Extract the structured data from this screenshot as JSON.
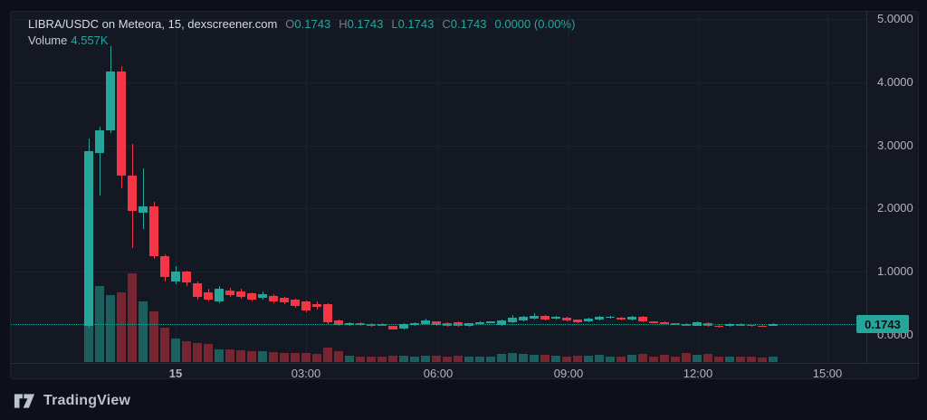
{
  "header": {
    "title": "LIBRA/USDC on Meteora, 15, dexscreener.com",
    "o_label": "O",
    "o_value": "0.1743",
    "h_label": "H",
    "h_value": "0.1743",
    "l_label": "L",
    "l_value": "0.1743",
    "c_label": "C",
    "c_value": "0.1743",
    "change_value": "0.0000 (0.00%)",
    "volume_label": "Volume",
    "volume_value": "4.557K"
  },
  "price_axis": {
    "ticks": [
      {
        "label": "5.0000",
        "value": 5
      },
      {
        "label": "4.0000",
        "value": 4
      },
      {
        "label": "3.0000",
        "value": 3
      },
      {
        "label": "2.0000",
        "value": 2
      },
      {
        "label": "1.0000",
        "value": 1
      },
      {
        "label": "0.0000",
        "value": 0
      }
    ],
    "last_price_badge": "0.1743"
  },
  "time_axis": {
    "ticks": [
      {
        "label": "15",
        "major": true
      },
      {
        "label": "03:00",
        "major": false
      },
      {
        "label": "06:00",
        "major": false
      },
      {
        "label": "09:00",
        "major": false
      },
      {
        "label": "12:00",
        "major": false
      },
      {
        "label": "15:00",
        "major": false
      }
    ]
  },
  "footer": {
    "brand": "TradingView"
  },
  "colors": {
    "background_outer": "#0d1018",
    "background_chart": "#141823",
    "up": "#26a69a",
    "down": "#f23645",
    "volume_up": "rgba(38,166,154,0.5)",
    "volume_down": "rgba(242,54,69,0.45)",
    "grid": "#1c2130",
    "axis_text": "#b2b5be",
    "title_text": "#d6dae2",
    "dim_text": "#787b86",
    "badge_bg": "#26a69a"
  },
  "chart_data": {
    "type": "candlestick",
    "title": "LIBRA/USDC on Meteora, 15, dexscreener.com",
    "symbol": "LIBRA/USDC",
    "exchange": "Meteora",
    "source": "dexscreener.com",
    "interval_minutes": 15,
    "ylim": [
      0,
      5.1
    ],
    "y_ticks": [
      0,
      1,
      2,
      3,
      4,
      5
    ],
    "x_tick_labels": [
      "15",
      "03:00",
      "06:00",
      "09:00",
      "12:00",
      "15:00"
    ],
    "grid": true,
    "last_price": 0.1743,
    "last_change": "0.0000 (0.00%)",
    "last_volume": "4.557K",
    "candle_format": [
      "open",
      "high",
      "low",
      "close",
      "volume_rel"
    ],
    "candles": [
      [
        0.14,
        3.11,
        0.12,
        2.91,
        88
      ],
      [
        2.88,
        3.3,
        2.21,
        3.24,
        84
      ],
      [
        3.24,
        4.57,
        3.2,
        4.17,
        74
      ],
      [
        4.17,
        4.25,
        2.32,
        2.52,
        77
      ],
      [
        2.52,
        3.02,
        1.38,
        1.96,
        98
      ],
      [
        1.93,
        2.64,
        1.68,
        2.03,
        67
      ],
      [
        2.03,
        2.11,
        1.2,
        1.25,
        56
      ],
      [
        1.25,
        1.27,
        0.85,
        0.92,
        38
      ],
      [
        0.85,
        1.09,
        0.8,
        1.0,
        26
      ],
      [
        1.0,
        1.02,
        0.77,
        0.83,
        23
      ],
      [
        0.82,
        0.84,
        0.56,
        0.6,
        21
      ],
      [
        0.67,
        0.73,
        0.53,
        0.56,
        20
      ],
      [
        0.53,
        0.77,
        0.5,
        0.73,
        14
      ],
      [
        0.7,
        0.74,
        0.6,
        0.63,
        14
      ],
      [
        0.69,
        0.73,
        0.57,
        0.6,
        13
      ],
      [
        0.66,
        0.68,
        0.53,
        0.56,
        12
      ],
      [
        0.59,
        0.69,
        0.56,
        0.64,
        12
      ],
      [
        0.62,
        0.64,
        0.5,
        0.53,
        11
      ],
      [
        0.59,
        0.6,
        0.49,
        0.52,
        10
      ],
      [
        0.56,
        0.57,
        0.43,
        0.46,
        10
      ],
      [
        0.53,
        0.54,
        0.36,
        0.39,
        10
      ],
      [
        0.49,
        0.53,
        0.4,
        0.44,
        9
      ],
      [
        0.49,
        0.5,
        0.17,
        0.2,
        16
      ],
      [
        0.23,
        0.24,
        0.15,
        0.16,
        12
      ],
      [
        0.16,
        0.2,
        0.15,
        0.19,
        7
      ],
      [
        0.19,
        0.2,
        0.15,
        0.16,
        6
      ],
      [
        0.17,
        0.18,
        0.13,
        0.14,
        6
      ],
      [
        0.17,
        0.18,
        0.14,
        0.15,
        6
      ],
      [
        0.14,
        0.15,
        0.08,
        0.09,
        7
      ],
      [
        0.1,
        0.18,
        0.09,
        0.17,
        7
      ],
      [
        0.16,
        0.2,
        0.15,
        0.19,
        6
      ],
      [
        0.17,
        0.26,
        0.16,
        0.23,
        7
      ],
      [
        0.21,
        0.22,
        0.15,
        0.16,
        7
      ],
      [
        0.19,
        0.2,
        0.13,
        0.14,
        6
      ],
      [
        0.2,
        0.21,
        0.13,
        0.14,
        7
      ],
      [
        0.14,
        0.19,
        0.13,
        0.19,
        6
      ],
      [
        0.17,
        0.21,
        0.16,
        0.2,
        6
      ],
      [
        0.19,
        0.22,
        0.18,
        0.21,
        6
      ],
      [
        0.16,
        0.24,
        0.15,
        0.23,
        9
      ],
      [
        0.2,
        0.32,
        0.19,
        0.27,
        10
      ],
      [
        0.23,
        0.3,
        0.22,
        0.29,
        9
      ],
      [
        0.26,
        0.34,
        0.25,
        0.3,
        8
      ],
      [
        0.3,
        0.31,
        0.23,
        0.24,
        8
      ],
      [
        0.26,
        0.3,
        0.25,
        0.29,
        7
      ],
      [
        0.27,
        0.28,
        0.22,
        0.23,
        6
      ],
      [
        0.24,
        0.25,
        0.19,
        0.2,
        7
      ],
      [
        0.21,
        0.27,
        0.2,
        0.26,
        7
      ],
      [
        0.24,
        0.3,
        0.23,
        0.29,
        8
      ],
      [
        0.27,
        0.3,
        0.26,
        0.29,
        6
      ],
      [
        0.27,
        0.28,
        0.23,
        0.24,
        6
      ],
      [
        0.24,
        0.3,
        0.23,
        0.29,
        8
      ],
      [
        0.29,
        0.3,
        0.2,
        0.21,
        9
      ],
      [
        0.21,
        0.22,
        0.19,
        0.2,
        6
      ],
      [
        0.2,
        0.21,
        0.17,
        0.18,
        8
      ],
      [
        0.18,
        0.19,
        0.16,
        0.17,
        6
      ],
      [
        0.17,
        0.18,
        0.14,
        0.15,
        10
      ],
      [
        0.15,
        0.21,
        0.14,
        0.2,
        8
      ],
      [
        0.19,
        0.2,
        0.13,
        0.14,
        9
      ],
      [
        0.15,
        0.16,
        0.12,
        0.13,
        6
      ],
      [
        0.14,
        0.18,
        0.13,
        0.17,
        6
      ],
      [
        0.17,
        0.18,
        0.14,
        0.15,
        6
      ],
      [
        0.16,
        0.17,
        0.13,
        0.14,
        6
      ],
      [
        0.15,
        0.16,
        0.13,
        0.14,
        5
      ],
      [
        0.15,
        0.18,
        0.14,
        0.1743,
        6
      ]
    ]
  }
}
